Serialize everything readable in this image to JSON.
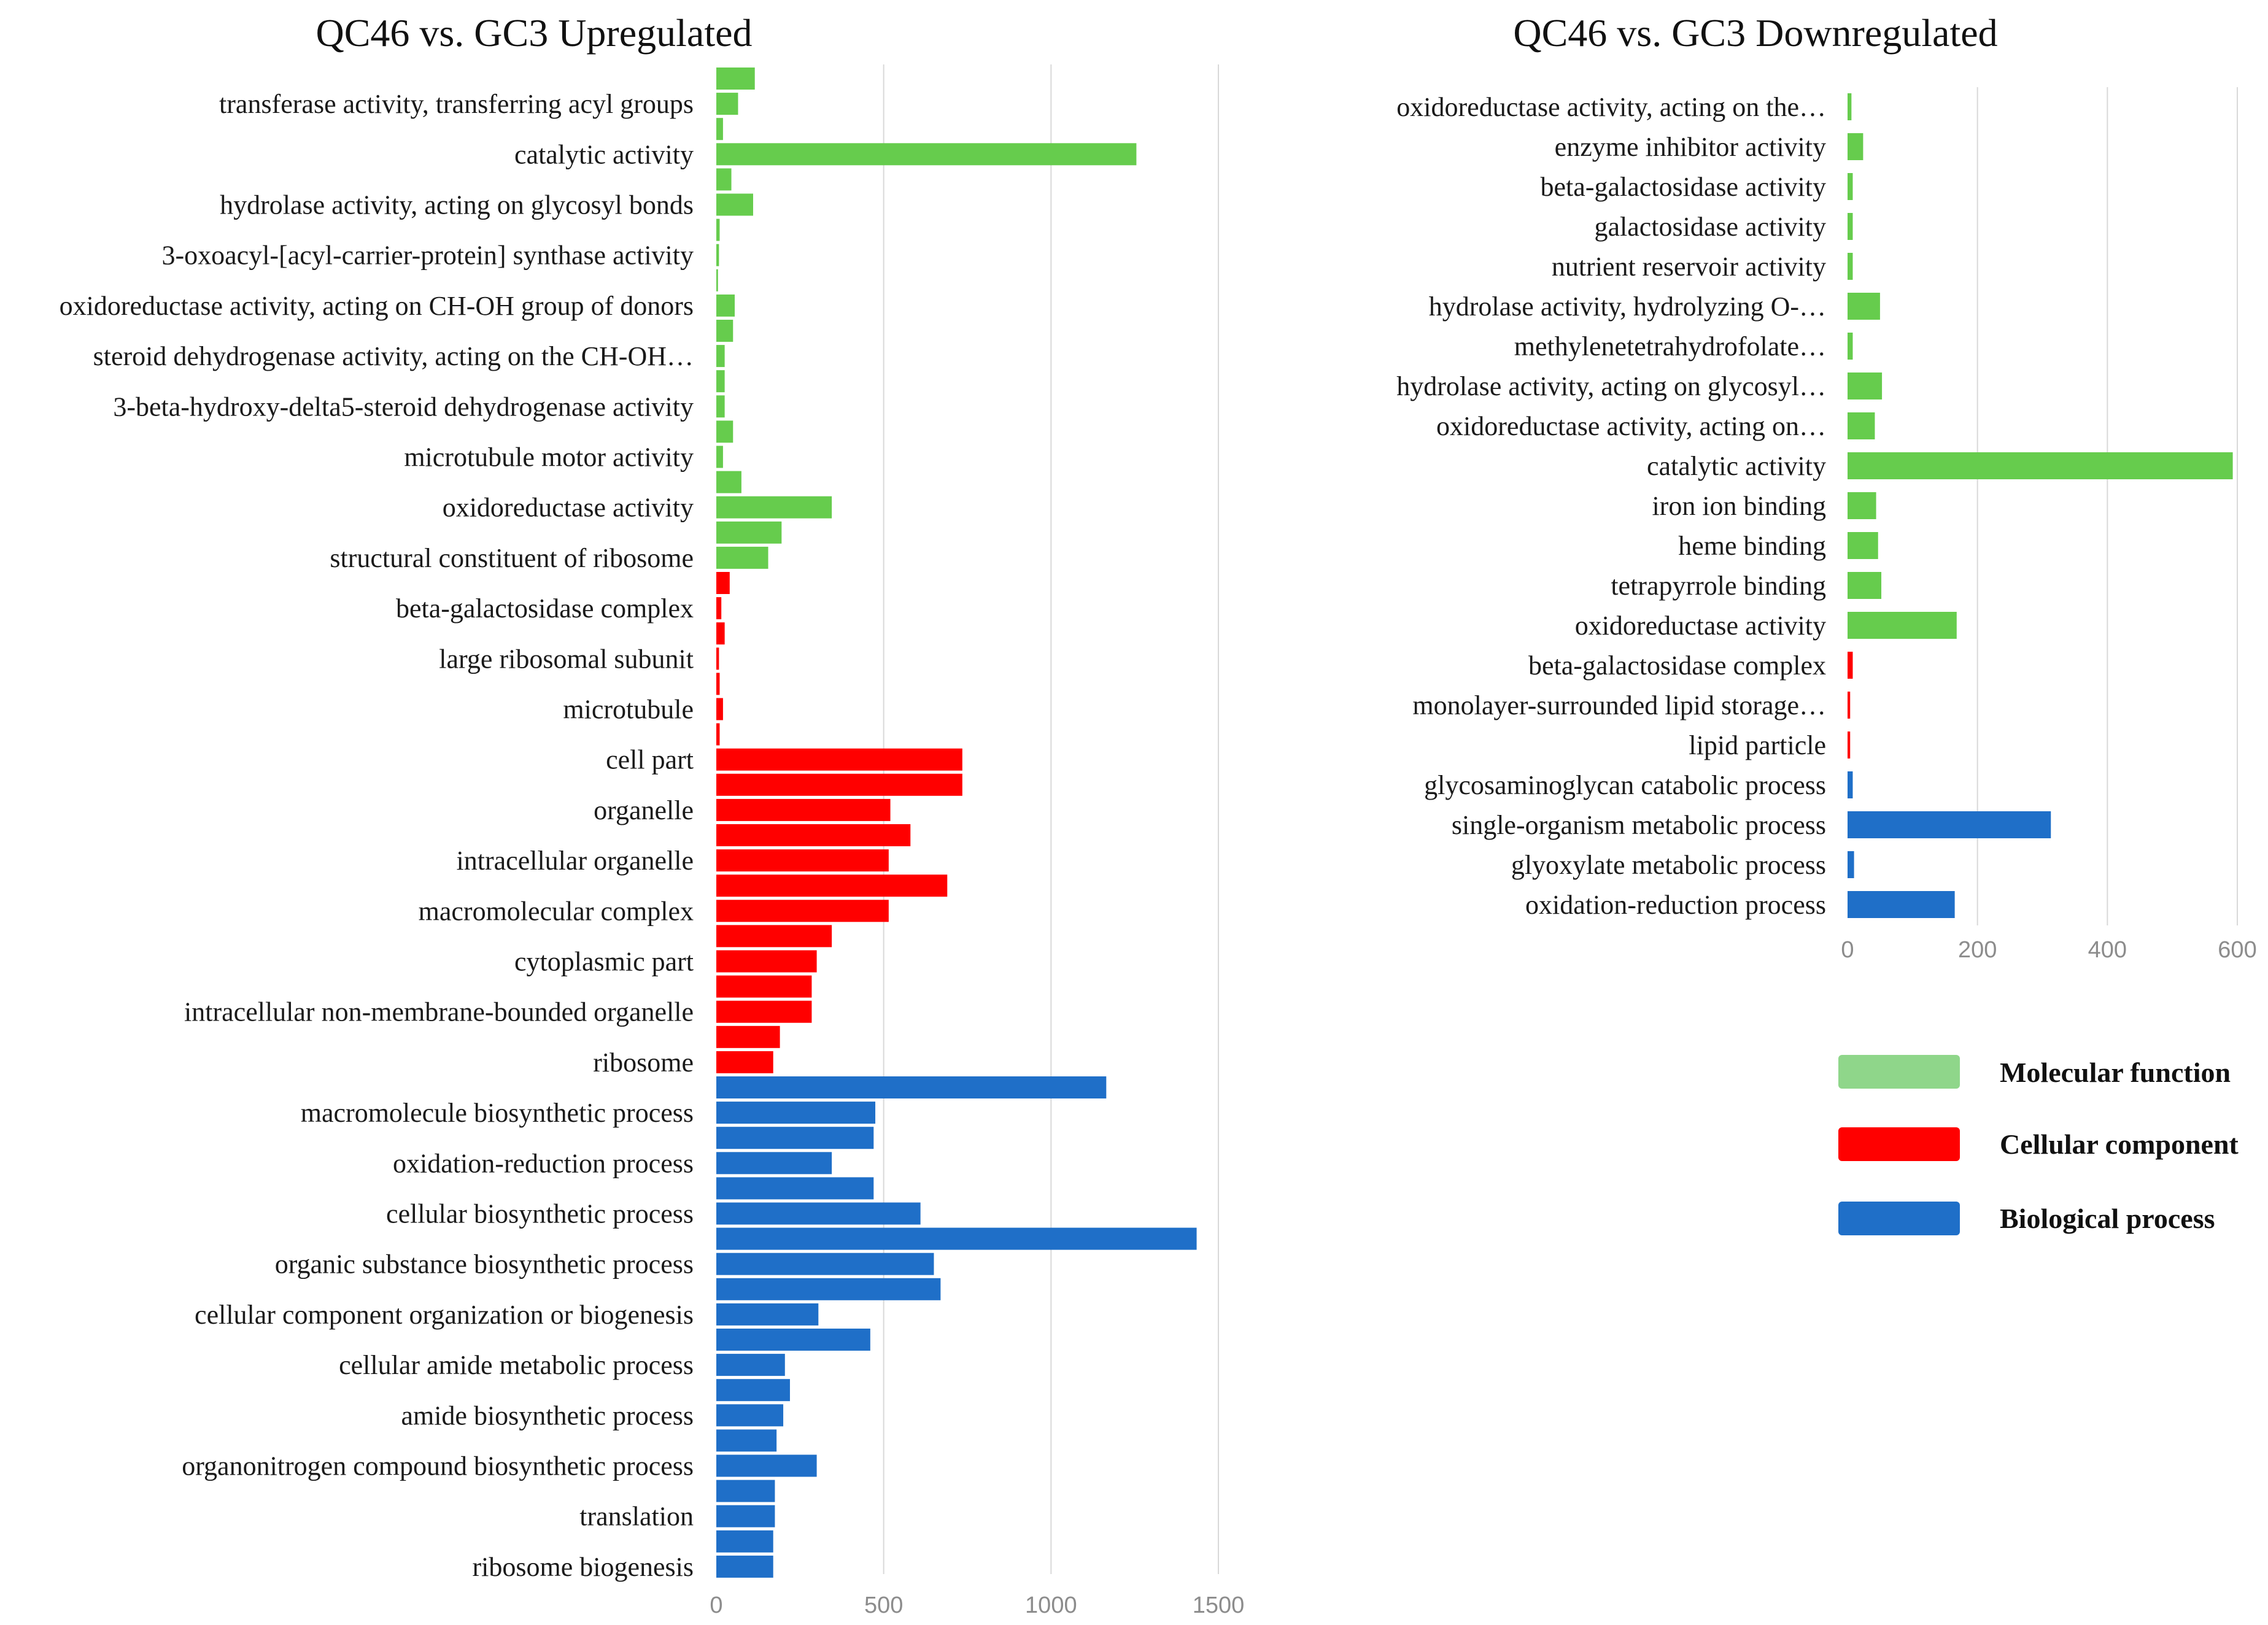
{
  "colors": {
    "molecular_function": "#66cc4d",
    "cellular_component": "#ff0000",
    "biological_process": "#1f6fc8",
    "legend_molecular_function": "#8fd68a",
    "legend_cellular_component": "#ff0000",
    "legend_biological_process": "#1f6fc8",
    "grid": "#d9d9d9"
  },
  "legend": {
    "items": [
      {
        "label": "Molecular function",
        "group": "molecular_function"
      },
      {
        "label": "Cellular component",
        "group": "cellular_component"
      },
      {
        "label": "Biological process",
        "group": "biological_process"
      }
    ]
  },
  "chart_data": [
    {
      "type": "bar",
      "orientation": "horizontal",
      "title": "QC46 vs. GC3 Upregulated",
      "xlabel": "",
      "ylabel": "",
      "xlim": [
        0,
        1500
      ],
      "xticks": [
        0,
        500,
        1000,
        1500
      ],
      "grid": true,
      "bars": [
        {
          "value": 115,
          "group": "molecular_function",
          "label": ""
        },
        {
          "value": 65,
          "group": "molecular_function",
          "label": "transferase activity, transferring acyl groups"
        },
        {
          "value": 20,
          "group": "molecular_function",
          "label": ""
        },
        {
          "value": 1255,
          "group": "molecular_function",
          "label": "catalytic activity"
        },
        {
          "value": 45,
          "group": "molecular_function",
          "label": ""
        },
        {
          "value": 110,
          "group": "molecular_function",
          "label": "hydrolase activity, acting on glycosyl bonds"
        },
        {
          "value": 10,
          "group": "molecular_function",
          "label": ""
        },
        {
          "value": 8,
          "group": "molecular_function",
          "label": "3-oxoacyl-[acyl-carrier-protein] synthase activity"
        },
        {
          "value": 5,
          "group": "molecular_function",
          "label": ""
        },
        {
          "value": 55,
          "group": "molecular_function",
          "label": "oxidoreductase activity, acting on CH-OH group of donors"
        },
        {
          "value": 50,
          "group": "molecular_function",
          "label": ""
        },
        {
          "value": 25,
          "group": "molecular_function",
          "label": "steroid dehydrogenase activity, acting on the CH-OH…"
        },
        {
          "value": 25,
          "group": "molecular_function",
          "label": ""
        },
        {
          "value": 25,
          "group": "molecular_function",
          "label": "3-beta-hydroxy-delta5-steroid dehydrogenase activity"
        },
        {
          "value": 50,
          "group": "molecular_function",
          "label": ""
        },
        {
          "value": 20,
          "group": "molecular_function",
          "label": "microtubule motor activity"
        },
        {
          "value": 75,
          "group": "molecular_function",
          "label": ""
        },
        {
          "value": 345,
          "group": "molecular_function",
          "label": "oxidoreductase activity"
        },
        {
          "value": 195,
          "group": "molecular_function",
          "label": ""
        },
        {
          "value": 155,
          "group": "molecular_function",
          "label": "structural constituent of ribosome"
        },
        {
          "value": 40,
          "group": "cellular_component",
          "label": ""
        },
        {
          "value": 15,
          "group": "cellular_component",
          "label": "beta-galactosidase complex"
        },
        {
          "value": 25,
          "group": "cellular_component",
          "label": ""
        },
        {
          "value": 8,
          "group": "cellular_component",
          "label": "large ribosomal subunit"
        },
        {
          "value": 10,
          "group": "cellular_component",
          "label": ""
        },
        {
          "value": 20,
          "group": "cellular_component",
          "label": "microtubule"
        },
        {
          "value": 10,
          "group": "cellular_component",
          "label": ""
        },
        {
          "value": 735,
          "group": "cellular_component",
          "label": "cell part"
        },
        {
          "value": 735,
          "group": "cellular_component",
          "label": ""
        },
        {
          "value": 520,
          "group": "cellular_component",
          "label": "organelle"
        },
        {
          "value": 580,
          "group": "cellular_component",
          "label": ""
        },
        {
          "value": 515,
          "group": "cellular_component",
          "label": "intracellular organelle"
        },
        {
          "value": 690,
          "group": "cellular_component",
          "label": ""
        },
        {
          "value": 515,
          "group": "cellular_component",
          "label": "macromolecular complex"
        },
        {
          "value": 345,
          "group": "cellular_component",
          "label": ""
        },
        {
          "value": 300,
          "group": "cellular_component",
          "label": "cytoplasmic part"
        },
        {
          "value": 285,
          "group": "cellular_component",
          "label": ""
        },
        {
          "value": 285,
          "group": "cellular_component",
          "label": "intracellular non-membrane-bounded organelle"
        },
        {
          "value": 190,
          "group": "cellular_component",
          "label": ""
        },
        {
          "value": 170,
          "group": "cellular_component",
          "label": "ribosome"
        },
        {
          "value": 1165,
          "group": "biological_process",
          "label": ""
        },
        {
          "value": 475,
          "group": "biological_process",
          "label": "macromolecule biosynthetic process"
        },
        {
          "value": 470,
          "group": "biological_process",
          "label": ""
        },
        {
          "value": 345,
          "group": "biological_process",
          "label": "oxidation-reduction process"
        },
        {
          "value": 470,
          "group": "biological_process",
          "label": ""
        },
        {
          "value": 610,
          "group": "biological_process",
          "label": "cellular biosynthetic process"
        },
        {
          "value": 1435,
          "group": "biological_process",
          "label": ""
        },
        {
          "value": 650,
          "group": "biological_process",
          "label": "organic substance biosynthetic process"
        },
        {
          "value": 670,
          "group": "biological_process",
          "label": ""
        },
        {
          "value": 305,
          "group": "biological_process",
          "label": "cellular component organization or biogenesis"
        },
        {
          "value": 460,
          "group": "biological_process",
          "label": ""
        },
        {
          "value": 205,
          "group": "biological_process",
          "label": "cellular amide metabolic process"
        },
        {
          "value": 220,
          "group": "biological_process",
          "label": ""
        },
        {
          "value": 200,
          "group": "biological_process",
          "label": "amide biosynthetic process"
        },
        {
          "value": 180,
          "group": "biological_process",
          "label": ""
        },
        {
          "value": 300,
          "group": "biological_process",
          "label": "organonitrogen compound biosynthetic process"
        },
        {
          "value": 175,
          "group": "biological_process",
          "label": ""
        },
        {
          "value": 175,
          "group": "biological_process",
          "label": "translation"
        },
        {
          "value": 170,
          "group": "biological_process",
          "label": ""
        },
        {
          "value": 170,
          "group": "biological_process",
          "label": "ribosome biogenesis"
        }
      ]
    },
    {
      "type": "bar",
      "orientation": "horizontal",
      "title": "QC46 vs. GC3 Downregulated",
      "xlabel": "",
      "ylabel": "",
      "xlim": [
        0,
        600
      ],
      "xticks": [
        0,
        200,
        400,
        600
      ],
      "grid": true,
      "bars": [
        {
          "value": 6,
          "group": "molecular_function",
          "label": "oxidoreductase activity, acting on the…"
        },
        {
          "value": 24,
          "group": "molecular_function",
          "label": "enzyme inhibitor activity"
        },
        {
          "value": 8,
          "group": "molecular_function",
          "label": "beta-galactosidase activity"
        },
        {
          "value": 8,
          "group": "molecular_function",
          "label": "galactosidase activity"
        },
        {
          "value": 8,
          "group": "molecular_function",
          "label": "nutrient reservoir activity"
        },
        {
          "value": 50,
          "group": "molecular_function",
          "label": "hydrolase activity, hydrolyzing O-…"
        },
        {
          "value": 8,
          "group": "molecular_function",
          "label": "methylenetetrahydrofolate…"
        },
        {
          "value": 53,
          "group": "molecular_function",
          "label": "hydrolase activity, acting on glycosyl…"
        },
        {
          "value": 42,
          "group": "molecular_function",
          "label": "oxidoreductase activity, acting on…"
        },
        {
          "value": 593,
          "group": "molecular_function",
          "label": "catalytic activity"
        },
        {
          "value": 44,
          "group": "molecular_function",
          "label": "iron ion binding"
        },
        {
          "value": 47,
          "group": "molecular_function",
          "label": "heme binding"
        },
        {
          "value": 52,
          "group": "molecular_function",
          "label": "tetrapyrrole binding"
        },
        {
          "value": 168,
          "group": "molecular_function",
          "label": "oxidoreductase activity"
        },
        {
          "value": 8,
          "group": "cellular_component",
          "label": "beta-galactosidase complex"
        },
        {
          "value": 4,
          "group": "cellular_component",
          "label": "monolayer-surrounded lipid storage…"
        },
        {
          "value": 4,
          "group": "cellular_component",
          "label": "lipid particle"
        },
        {
          "value": 8,
          "group": "biological_process",
          "label": "glycosaminoglycan catabolic process"
        },
        {
          "value": 313,
          "group": "biological_process",
          "label": "single-organism metabolic process"
        },
        {
          "value": 10,
          "group": "biological_process",
          "label": "glyoxylate metabolic process"
        },
        {
          "value": 165,
          "group": "biological_process",
          "label": "oxidation-reduction process"
        }
      ]
    }
  ]
}
